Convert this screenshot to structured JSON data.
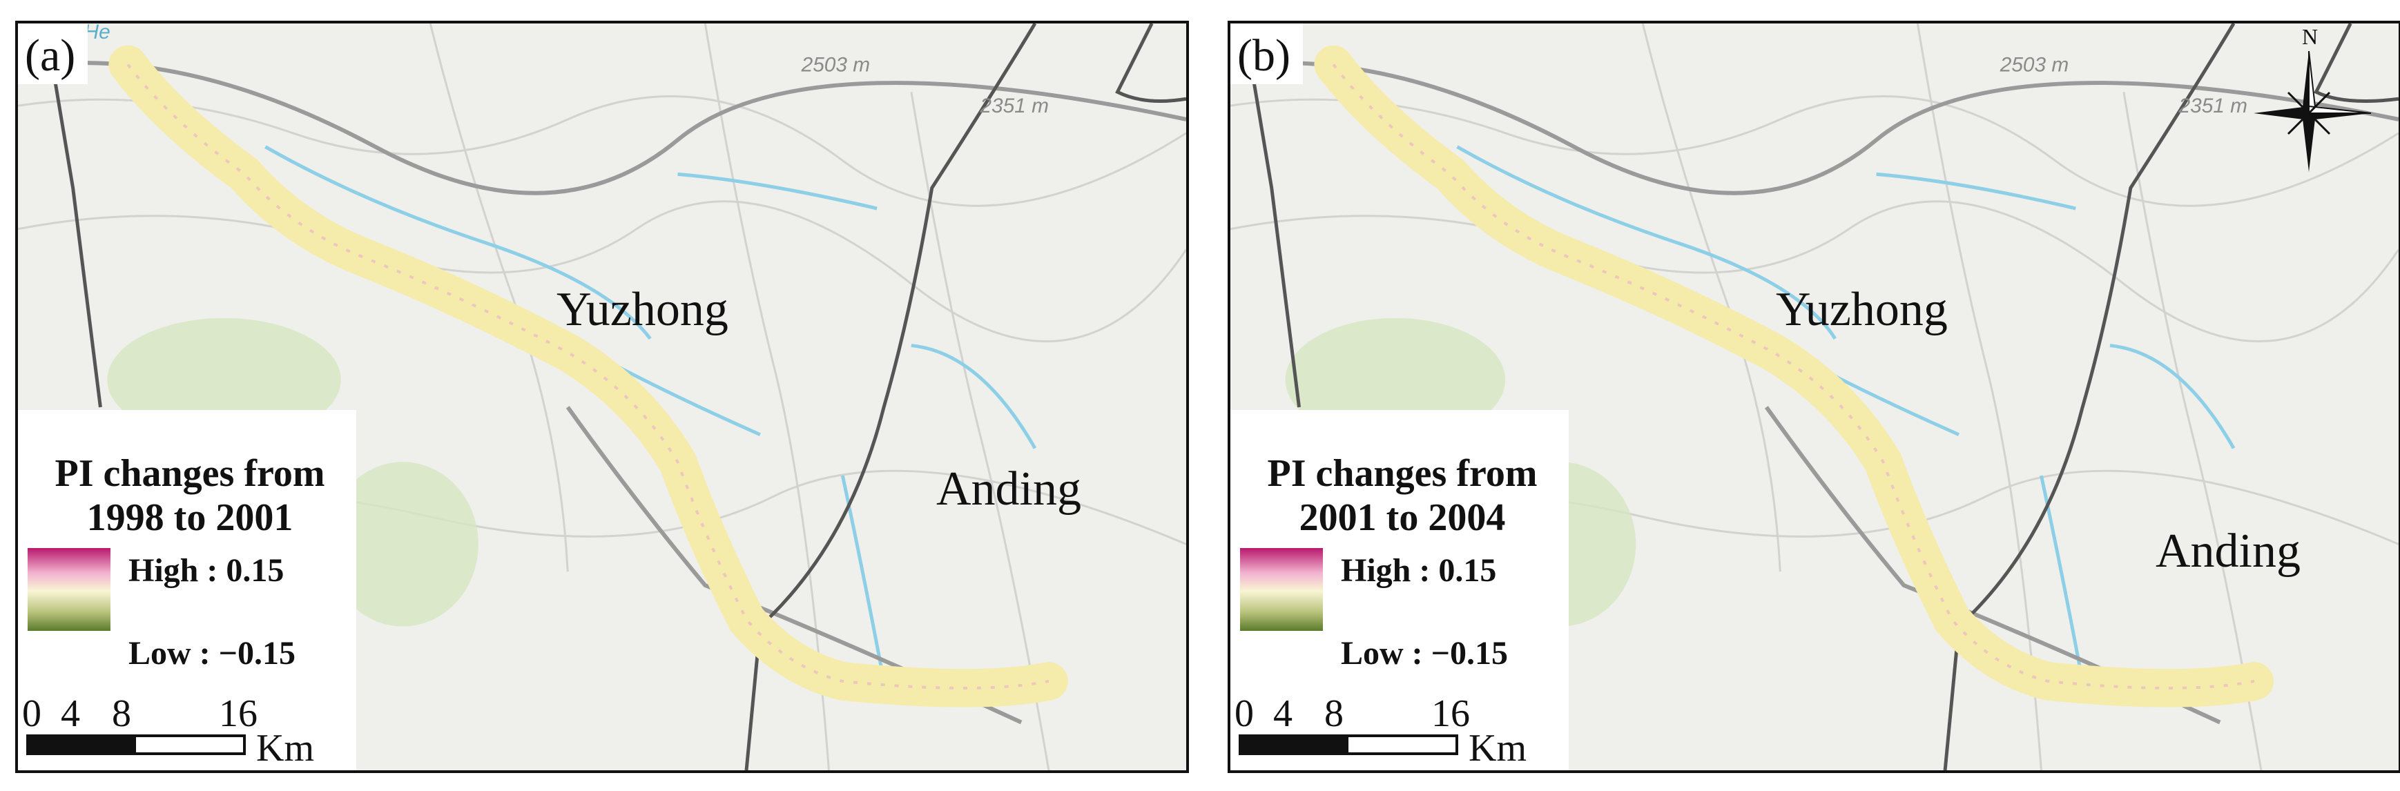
{
  "figure": {
    "panels": [
      {
        "id": "a",
        "label": "(a)",
        "places": {
          "city_1": "Yuzhong",
          "city_2": "Anding"
        },
        "elevation_labels": [
          "2503 m",
          "2351 m"
        ],
        "river_label": "He",
        "legend": {
          "title_line1": "PI changes from",
          "title_line2": "1998 to 2001",
          "high_label": "High : 0.15",
          "low_label": "Low : −0.15",
          "ramp_colors": [
            "#b8186e",
            "#f2b3ce",
            "#f8f5d4",
            "#b8c27a",
            "#5a7a2a"
          ]
        },
        "scale": {
          "ticks": [
            "0",
            "4",
            "8",
            "16"
          ],
          "unit": "Km"
        }
      },
      {
        "id": "b",
        "label": "(b)",
        "places": {
          "city_1": "Yuzhong",
          "city_2": "Anding"
        },
        "elevation_labels": [
          "2503 m",
          "2351 m"
        ],
        "river_label": "",
        "legend": {
          "title_line1": "PI changes from",
          "title_line2": "2001 to 2004",
          "high_label": "High : 0.15",
          "low_label": "Low : −0.15",
          "ramp_colors": [
            "#b8186e",
            "#f2b3ce",
            "#f8f5d4",
            "#b8c27a",
            "#5a7a2a"
          ]
        },
        "scale": {
          "ticks": [
            "0",
            "4",
            "8",
            "16"
          ],
          "unit": "Km"
        },
        "north_arrow": "N"
      }
    ],
    "colors": {
      "basemap": "#efefec",
      "corridor": "#f5ecab",
      "river": "#8ccfe6",
      "boundary": "#555555",
      "road": "#9a9a9a",
      "green_patch": "#cfe1b6"
    }
  }
}
